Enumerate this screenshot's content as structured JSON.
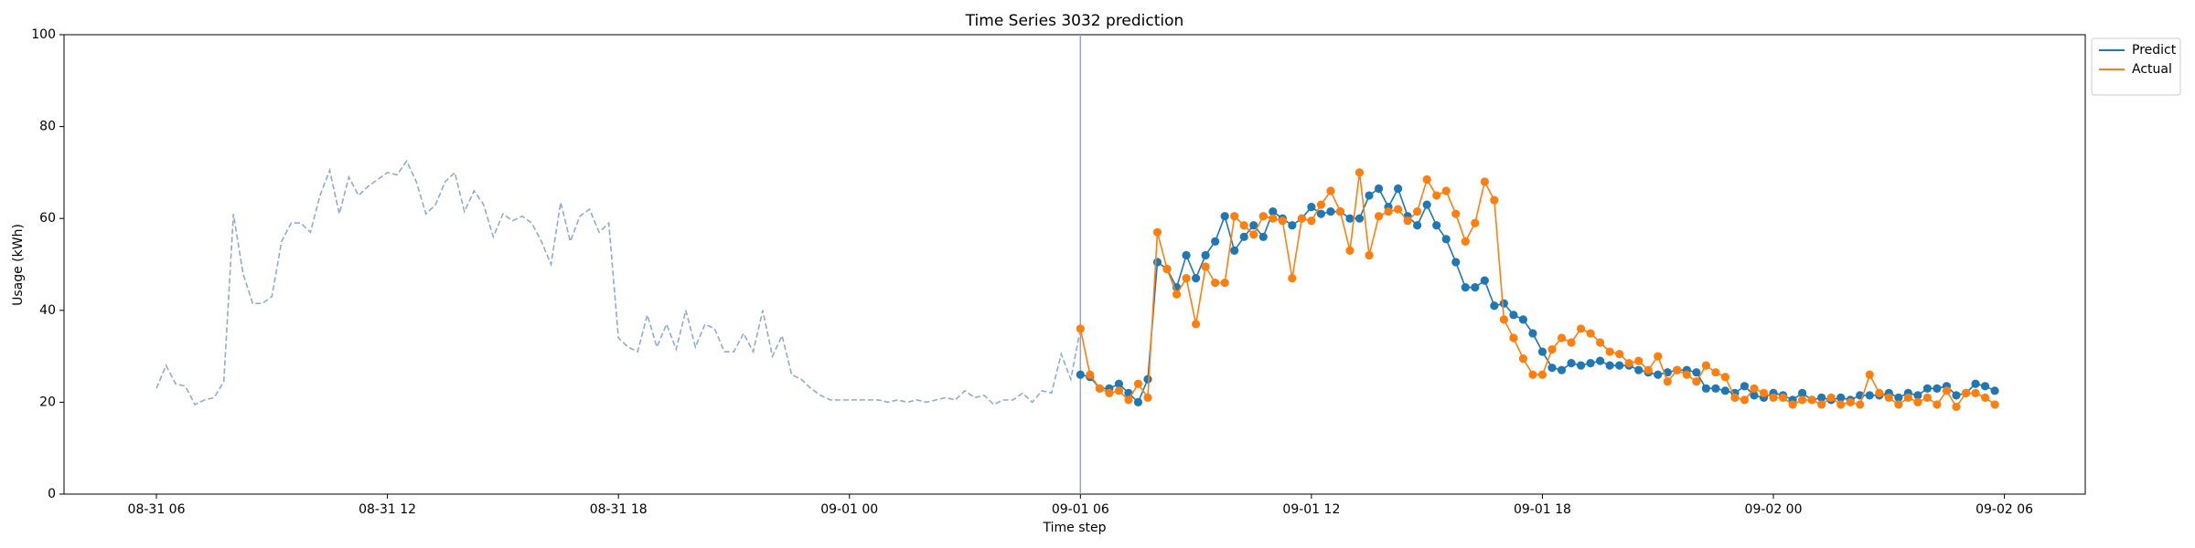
{
  "chart_data": {
    "type": "line",
    "title": "Time Series 3032 prediction",
    "x_label": "Time step",
    "y_label": "Usage (kWh)",
    "xlim": [
      "08-31 03:36",
      "09-02 08:06"
    ],
    "xticks": [
      "08-31 06",
      "08-31 12",
      "08-31 18",
      "09-01 00",
      "09-01 06",
      "09-01 12",
      "09-01 18",
      "09-02 00",
      "09-02 06"
    ],
    "ylim": [
      0,
      100
    ],
    "yticks": [
      0,
      20,
      40,
      60,
      80,
      100
    ],
    "grid": false,
    "legend": "outside-right",
    "vline": {
      "x": "09-01 06:00",
      "color": "#8ea4d2"
    },
    "history": {
      "color": "#8faad4",
      "dashed": true,
      "start": "08-31 06:00",
      "step_minutes": 15,
      "values": [
        23,
        28,
        24,
        23.5,
        19.5,
        20.5,
        21,
        24.5,
        61,
        48,
        41.5,
        41.5,
        43,
        55,
        59,
        59,
        57,
        65,
        70.5,
        61,
        69,
        65,
        67,
        68.5,
        70,
        69.5,
        72.5,
        68,
        61,
        63,
        68,
        70,
        61.5,
        66,
        63,
        56,
        61,
        59.5,
        60.5,
        59,
        55,
        50,
        63.5,
        55,
        60.5,
        62,
        57,
        59,
        34,
        32,
        31,
        39,
        32,
        37,
        31.5,
        40,
        32,
        37,
        36,
        31,
        31,
        35,
        31,
        40,
        30,
        34.5,
        26,
        25,
        23,
        21.5,
        20.5,
        20.5,
        20.5,
        20.5,
        20.5,
        20.5,
        20,
        20.5,
        20,
        20.5,
        20,
        20.5,
        21,
        20.5,
        22.5,
        21,
        21.5,
        19.5,
        20.5,
        20.5,
        22,
        20,
        22.5,
        22,
        30.5,
        25,
        36
      ]
    },
    "series": [
      {
        "name": "Predict",
        "color": "#1f77b4",
        "start": "09-01 06:00",
        "step_minutes": 15,
        "values": [
          26,
          25.5,
          23,
          23,
          24,
          22,
          20,
          25,
          50.5,
          49,
          45,
          52,
          47,
          52,
          55,
          60.5,
          53,
          56,
          58.5,
          56,
          61.5,
          60,
          58.5,
          60,
          62.5,
          61,
          61.5,
          61.5,
          60,
          60,
          65,
          66.5,
          62.5,
          66.5,
          60.5,
          58.5,
          63,
          58.5,
          55.5,
          50.5,
          45,
          45,
          46.5,
          41,
          41.5,
          39,
          38,
          35,
          31,
          27.5,
          27,
          28.5,
          28,
          28.5,
          29,
          28,
          28,
          28,
          27,
          26.5,
          26,
          26.5,
          27,
          27,
          26.5,
          23,
          23,
          22.5,
          22,
          23.5,
          21.5,
          21,
          22,
          21.5,
          20.5,
          22,
          20.5,
          21,
          20.5,
          21,
          20.5,
          21.5,
          21.5,
          21.5,
          22,
          21,
          22,
          21.5,
          23,
          23,
          23.5,
          21.5,
          22,
          24,
          23.5,
          22.5
        ]
      },
      {
        "name": "Actual",
        "color": "#ff7f0e",
        "start": "09-01 06:00",
        "step_minutes": 15,
        "values": [
          36,
          26,
          23,
          22,
          22.5,
          20.5,
          24,
          21,
          57,
          49,
          43.5,
          47,
          37,
          49.5,
          46,
          46,
          60.5,
          58.5,
          56.5,
          60.5,
          60,
          59.5,
          47,
          60,
          59.5,
          63,
          66,
          61.5,
          53,
          70,
          52,
          60.5,
          61.5,
          62,
          59.5,
          61.5,
          68.5,
          65,
          66,
          61,
          55,
          59,
          68,
          64,
          38,
          34,
          29.5,
          26,
          26,
          31.5,
          34,
          33,
          36,
          35,
          33,
          31,
          30.5,
          28.5,
          29,
          27,
          30,
          24.5,
          27,
          26,
          24.5,
          28,
          26.5,
          25.5,
          21,
          20.5,
          23,
          22,
          21,
          21,
          19.5,
          20.5,
          20.5,
          19.5,
          21,
          19.5,
          20,
          19.5,
          26,
          22,
          21,
          19.5,
          21,
          20,
          21,
          19.5,
          22.5,
          19,
          22,
          22,
          21,
          19.5
        ]
      }
    ]
  }
}
